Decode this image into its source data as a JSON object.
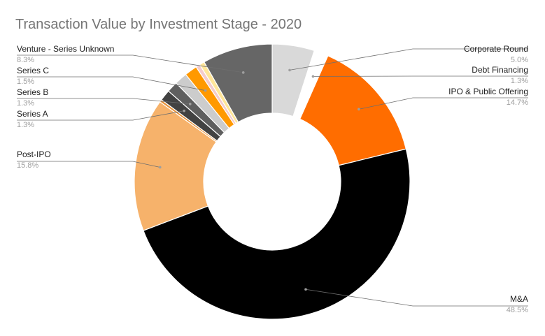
{
  "chart_data": {
    "type": "pie",
    "donut": true,
    "title": "Transaction Value by Investment Stage - 2020",
    "legend": "none",
    "slices": [
      {
        "label": "Corporate Round",
        "value": 5.0,
        "pct_label": "5.0%",
        "color": "#d9d9d9",
        "side": "right"
      },
      {
        "label": "",
        "value": 0.3,
        "pct_label": "",
        "color": "#ffffff",
        "side": "none"
      },
      {
        "label": "Debt Financing",
        "value": 1.3,
        "pct_label": "1.3%",
        "color": "#ffffff",
        "side": "right"
      },
      {
        "label": "",
        "value": 0.1,
        "pct_label": "",
        "color": "#6aa84f",
        "side": "none"
      },
      {
        "label": "IPO & Public Offering",
        "value": 14.7,
        "pct_label": "14.7%",
        "color": "#ff6d00",
        "side": "right"
      },
      {
        "label": "M&A",
        "value": 48.5,
        "pct_label": "48.5%",
        "color": "#000000",
        "side": "right"
      },
      {
        "label": "Post-IPO",
        "value": 15.8,
        "pct_label": "15.8%",
        "color": "#f6b26b",
        "side": "left"
      },
      {
        "label": "",
        "value": 0.3,
        "pct_label": "",
        "color": "#e69138",
        "side": "none"
      },
      {
        "label": "Series A",
        "value": 1.3,
        "pct_label": "1.3%",
        "color": "#424242",
        "side": "left"
      },
      {
        "label": "Series B",
        "value": 1.3,
        "pct_label": "1.3%",
        "color": "#5f5f5f",
        "side": "left"
      },
      {
        "label": "",
        "value": 1.5,
        "pct_label": "",
        "color": "#cccccc",
        "side": "none"
      },
      {
        "label": "Series C",
        "value": 1.5,
        "pct_label": "1.5%",
        "color": "#ff9900",
        "side": "left"
      },
      {
        "label": "",
        "value": 0.5,
        "pct_label": "",
        "color": "#f4cccc",
        "side": "none"
      },
      {
        "label": "",
        "value": 0.6,
        "pct_label": "",
        "color": "#ffe599",
        "side": "none"
      },
      {
        "label": "Venture - Series Unknown",
        "value": 8.3,
        "pct_label": "8.3%",
        "color": "#666666",
        "side": "left"
      }
    ]
  }
}
